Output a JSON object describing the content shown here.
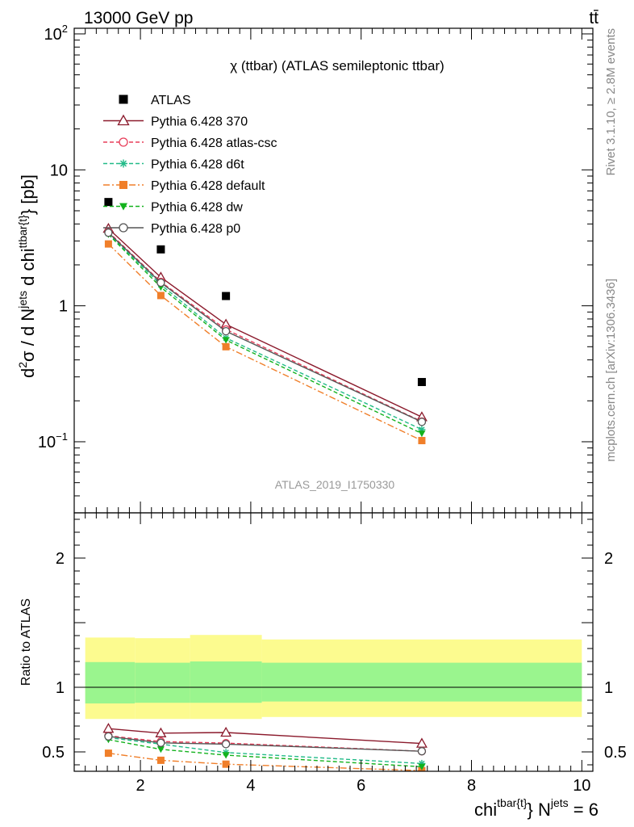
{
  "header": {
    "energy": "13000 GeV pp",
    "process": "tt̄"
  },
  "side": {
    "rivet": "Rivet 3.1.10, ≥ 2.8M events",
    "site": "mcplots.cern.ch [arXiv:1306.3436]"
  },
  "watermark": "ATLAS_2019_I1750330",
  "chart_data": [
    {
      "type": "line",
      "title": "χ (ttbar) (ATLAS semileptonic ttbar)",
      "ylabel": "d²σ / d N^jets d chi^ttbar{t} [pb]",
      "yscale": "log",
      "ylim": [
        0.03,
        110
      ],
      "xlim": [
        0.8,
        10.2
      ],
      "yticks": [
        {
          "v": 0.1,
          "base": "10",
          "exp": "−1"
        },
        {
          "v": 1,
          "base": "1",
          "exp": ""
        },
        {
          "v": 10,
          "base": "10",
          "exp": ""
        },
        {
          "v": 100,
          "base": "10",
          "exp": "2"
        }
      ],
      "x": [
        1.42,
        2.37,
        3.55,
        7.1
      ],
      "series": [
        {
          "name": "ATLAS",
          "color": "#000000",
          "marker": "square-filled",
          "line": "none",
          "values": [
            5.8,
            2.6,
            1.18,
            0.275
          ]
        },
        {
          "name": "Pythia 6.428 370",
          "color": "#8b1a2c",
          "marker": "triangle-open",
          "line": "solid",
          "values": [
            3.7,
            1.62,
            0.73,
            0.152
          ]
        },
        {
          "name": "Pythia 6.428 atlas-csc",
          "color": "#e83e5a",
          "marker": "circle-open",
          "line": "dashed",
          "values": [
            3.5,
            1.5,
            0.67,
            0.141
          ]
        },
        {
          "name": "Pythia 6.428 d6t",
          "color": "#22bb88",
          "marker": "star",
          "line": "dashed",
          "values": [
            3.4,
            1.43,
            0.58,
            0.123
          ]
        },
        {
          "name": "Pythia 6.428 default",
          "color": "#f07f2a",
          "marker": "square-filled",
          "line": "dashdot",
          "values": [
            2.85,
            1.19,
            0.5,
            0.102
          ]
        },
        {
          "name": "Pythia 6.428 dw",
          "color": "#13b21d",
          "marker": "triangle-down-filled",
          "line": "dashed",
          "values": [
            3.35,
            1.37,
            0.56,
            0.115
          ]
        },
        {
          "name": "Pythia 6.428 p0",
          "color": "#555555",
          "marker": "circle-open",
          "line": "solid",
          "values": [
            3.45,
            1.48,
            0.65,
            0.14
          ]
        }
      ]
    },
    {
      "type": "line",
      "ylabel": "Ratio to ATLAS",
      "xlabel": "chi^tbar{t} N^jets = 6",
      "ylim": [
        0.35,
        2.35
      ],
      "xlim": [
        0.8,
        10.2
      ],
      "yticks": [
        0.5,
        1,
        2
      ],
      "xticks": [
        2,
        4,
        6,
        8,
        10
      ],
      "bands": [
        {
          "x0": 1.0,
          "x1": 1.9,
          "yellow": [
            0.755,
            1.385
          ],
          "green": [
            0.875,
            1.195
          ]
        },
        {
          "x0": 1.9,
          "x1": 2.9,
          "yellow": [
            0.755,
            1.38
          ],
          "green": [
            0.88,
            1.19
          ]
        },
        {
          "x0": 2.9,
          "x1": 4.2,
          "yellow": [
            0.755,
            1.405
          ],
          "green": [
            0.88,
            1.2
          ]
        },
        {
          "x0": 4.2,
          "x1": 10.0,
          "yellow": [
            0.77,
            1.37
          ],
          "green": [
            0.89,
            1.19
          ]
        }
      ],
      "x": [
        1.42,
        2.37,
        3.55,
        7.1
      ],
      "series": [
        {
          "name": "Pythia 6.428 370",
          "color": "#8b1a2c",
          "marker": "triangle-open",
          "line": "solid",
          "values": [
            0.68,
            0.645,
            0.65,
            0.565
          ]
        },
        {
          "name": "Pythia 6.428 atlas-csc",
          "color": "#e83e5a",
          "marker": "circle-open",
          "line": "dashed",
          "values": [
            0.625,
            0.58,
            0.568,
            0.505
          ]
        },
        {
          "name": "Pythia 6.428 d6t",
          "color": "#22bb88",
          "marker": "star",
          "line": "dashed",
          "values": [
            0.61,
            0.56,
            0.495,
            0.41
          ]
        },
        {
          "name": "Pythia 6.428 default",
          "color": "#f07f2a",
          "marker": "square-filled",
          "line": "dashdot",
          "values": [
            0.49,
            0.435,
            0.405,
            0.355
          ]
        },
        {
          "name": "Pythia 6.428 dw",
          "color": "#13b21d",
          "marker": "triangle-down-filled",
          "line": "dashed",
          "values": [
            0.595,
            0.52,
            0.475,
            0.385
          ]
        },
        {
          "name": "Pythia 6.428 p0",
          "color": "#555555",
          "marker": "circle-open",
          "line": "solid",
          "values": [
            0.62,
            0.57,
            0.56,
            0.505
          ]
        }
      ]
    }
  ]
}
